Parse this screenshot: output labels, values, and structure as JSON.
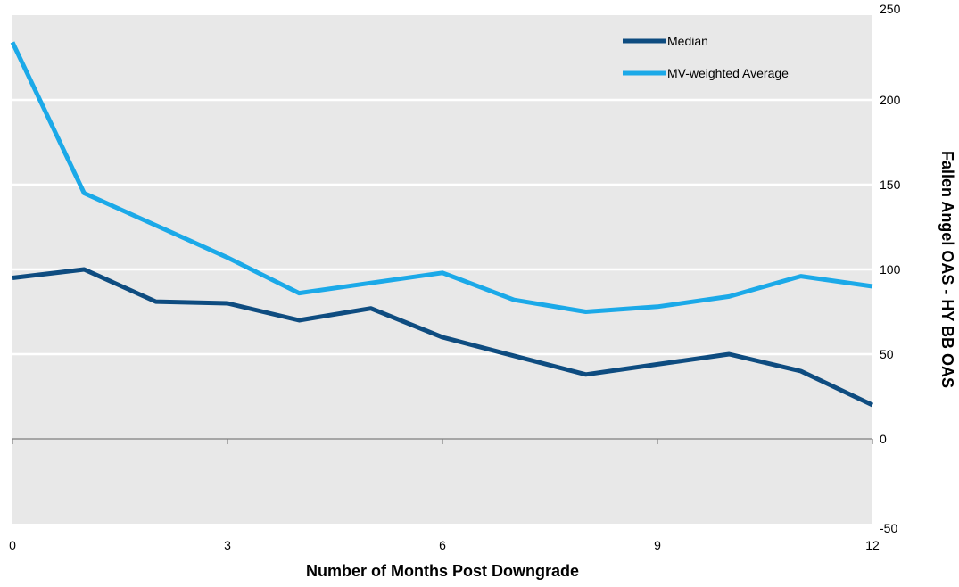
{
  "chart_data": {
    "type": "line",
    "title": "",
    "xlabel": "Number of Months Post Downgrade",
    "ylabel": "Fallen Angel OAS - HY BB OAS",
    "x": [
      0,
      1,
      2,
      3,
      4,
      5,
      6,
      7,
      8,
      9,
      10,
      11,
      12
    ],
    "x_ticks": [
      0,
      3,
      6,
      9,
      12
    ],
    "y_ticks": [
      -50,
      0,
      50,
      100,
      150,
      200,
      250
    ],
    "xlim": [
      0,
      12
    ],
    "ylim": [
      -50,
      250
    ],
    "y_axis_side": "right",
    "grid": "horizontal",
    "plot_background": "#e8e8e8",
    "legend_position": "top-right",
    "series": [
      {
        "name": "Median",
        "color": "#0e4c80",
        "values": [
          95,
          100,
          81,
          80,
          70,
          77,
          60,
          49,
          38,
          44,
          50,
          40,
          20
        ]
      },
      {
        "name": "MV-weighted Average",
        "color": "#1ba9e8",
        "values": [
          234,
          145,
          126,
          107,
          86,
          92,
          98,
          82,
          75,
          78,
          84,
          96,
          90
        ]
      }
    ]
  }
}
